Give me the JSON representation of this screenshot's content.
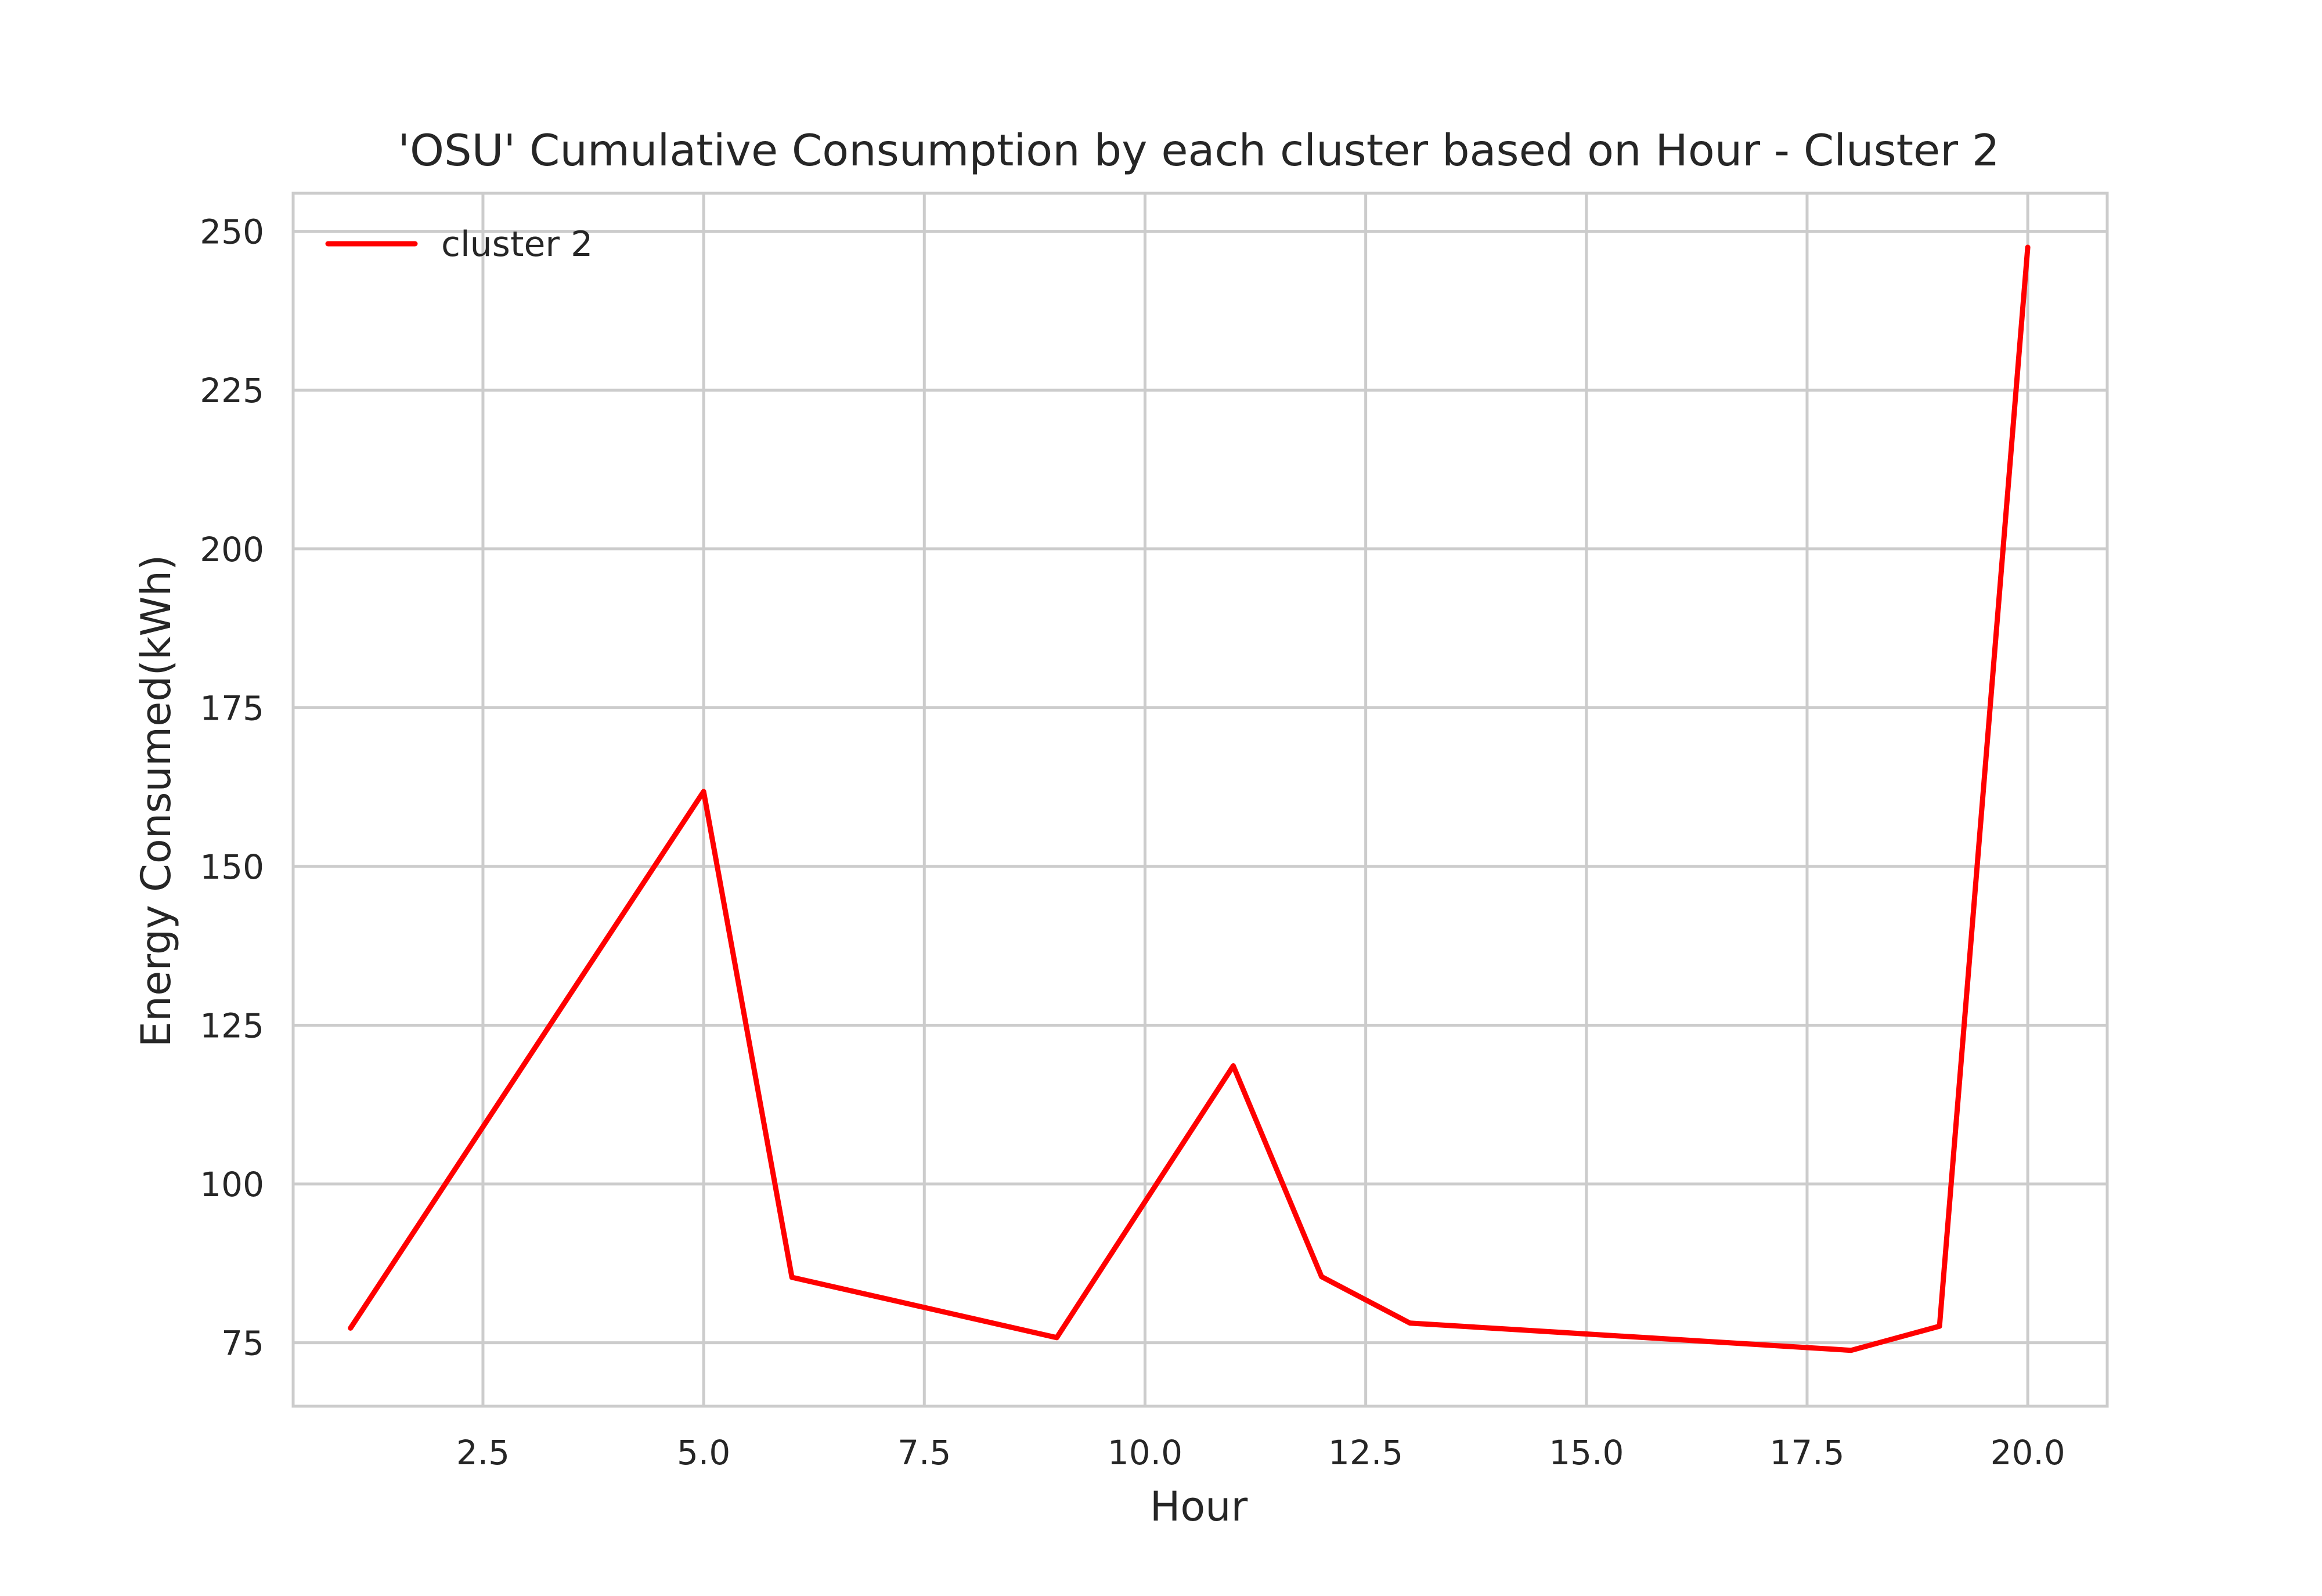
{
  "chart_data": {
    "type": "line",
    "title": "'OSU' Cumulative Consumption by each cluster based on Hour - Cluster 2",
    "xlabel": "Hour",
    "ylabel": "Energy Consumed(kWh)",
    "xlim": [
      0.35,
      20.9
    ],
    "ylim": [
      65,
      256
    ],
    "xticks": [
      2.5,
      5.0,
      7.5,
      10.0,
      12.5,
      15.0,
      17.5,
      20.0
    ],
    "xtick_labels": [
      "2.5",
      "5.0",
      "7.5",
      "10.0",
      "12.5",
      "15.0",
      "17.5",
      "20.0"
    ],
    "yticks": [
      75,
      100,
      125,
      150,
      175,
      200,
      225,
      250
    ],
    "ytick_labels": [
      "75",
      "100",
      "125",
      "150",
      "175",
      "200",
      "225",
      "250"
    ],
    "grid": true,
    "legend_position": "top-left",
    "series": [
      {
        "name": "cluster 2",
        "color": "#ff0000",
        "x": [
          1,
          5,
          6,
          9,
          11,
          12,
          13,
          18,
          19,
          20
        ],
        "y": [
          77.3,
          161.8,
          85.3,
          75.8,
          118.6,
          85.4,
          78.1,
          73.8,
          77.6,
          247.5
        ]
      }
    ]
  }
}
